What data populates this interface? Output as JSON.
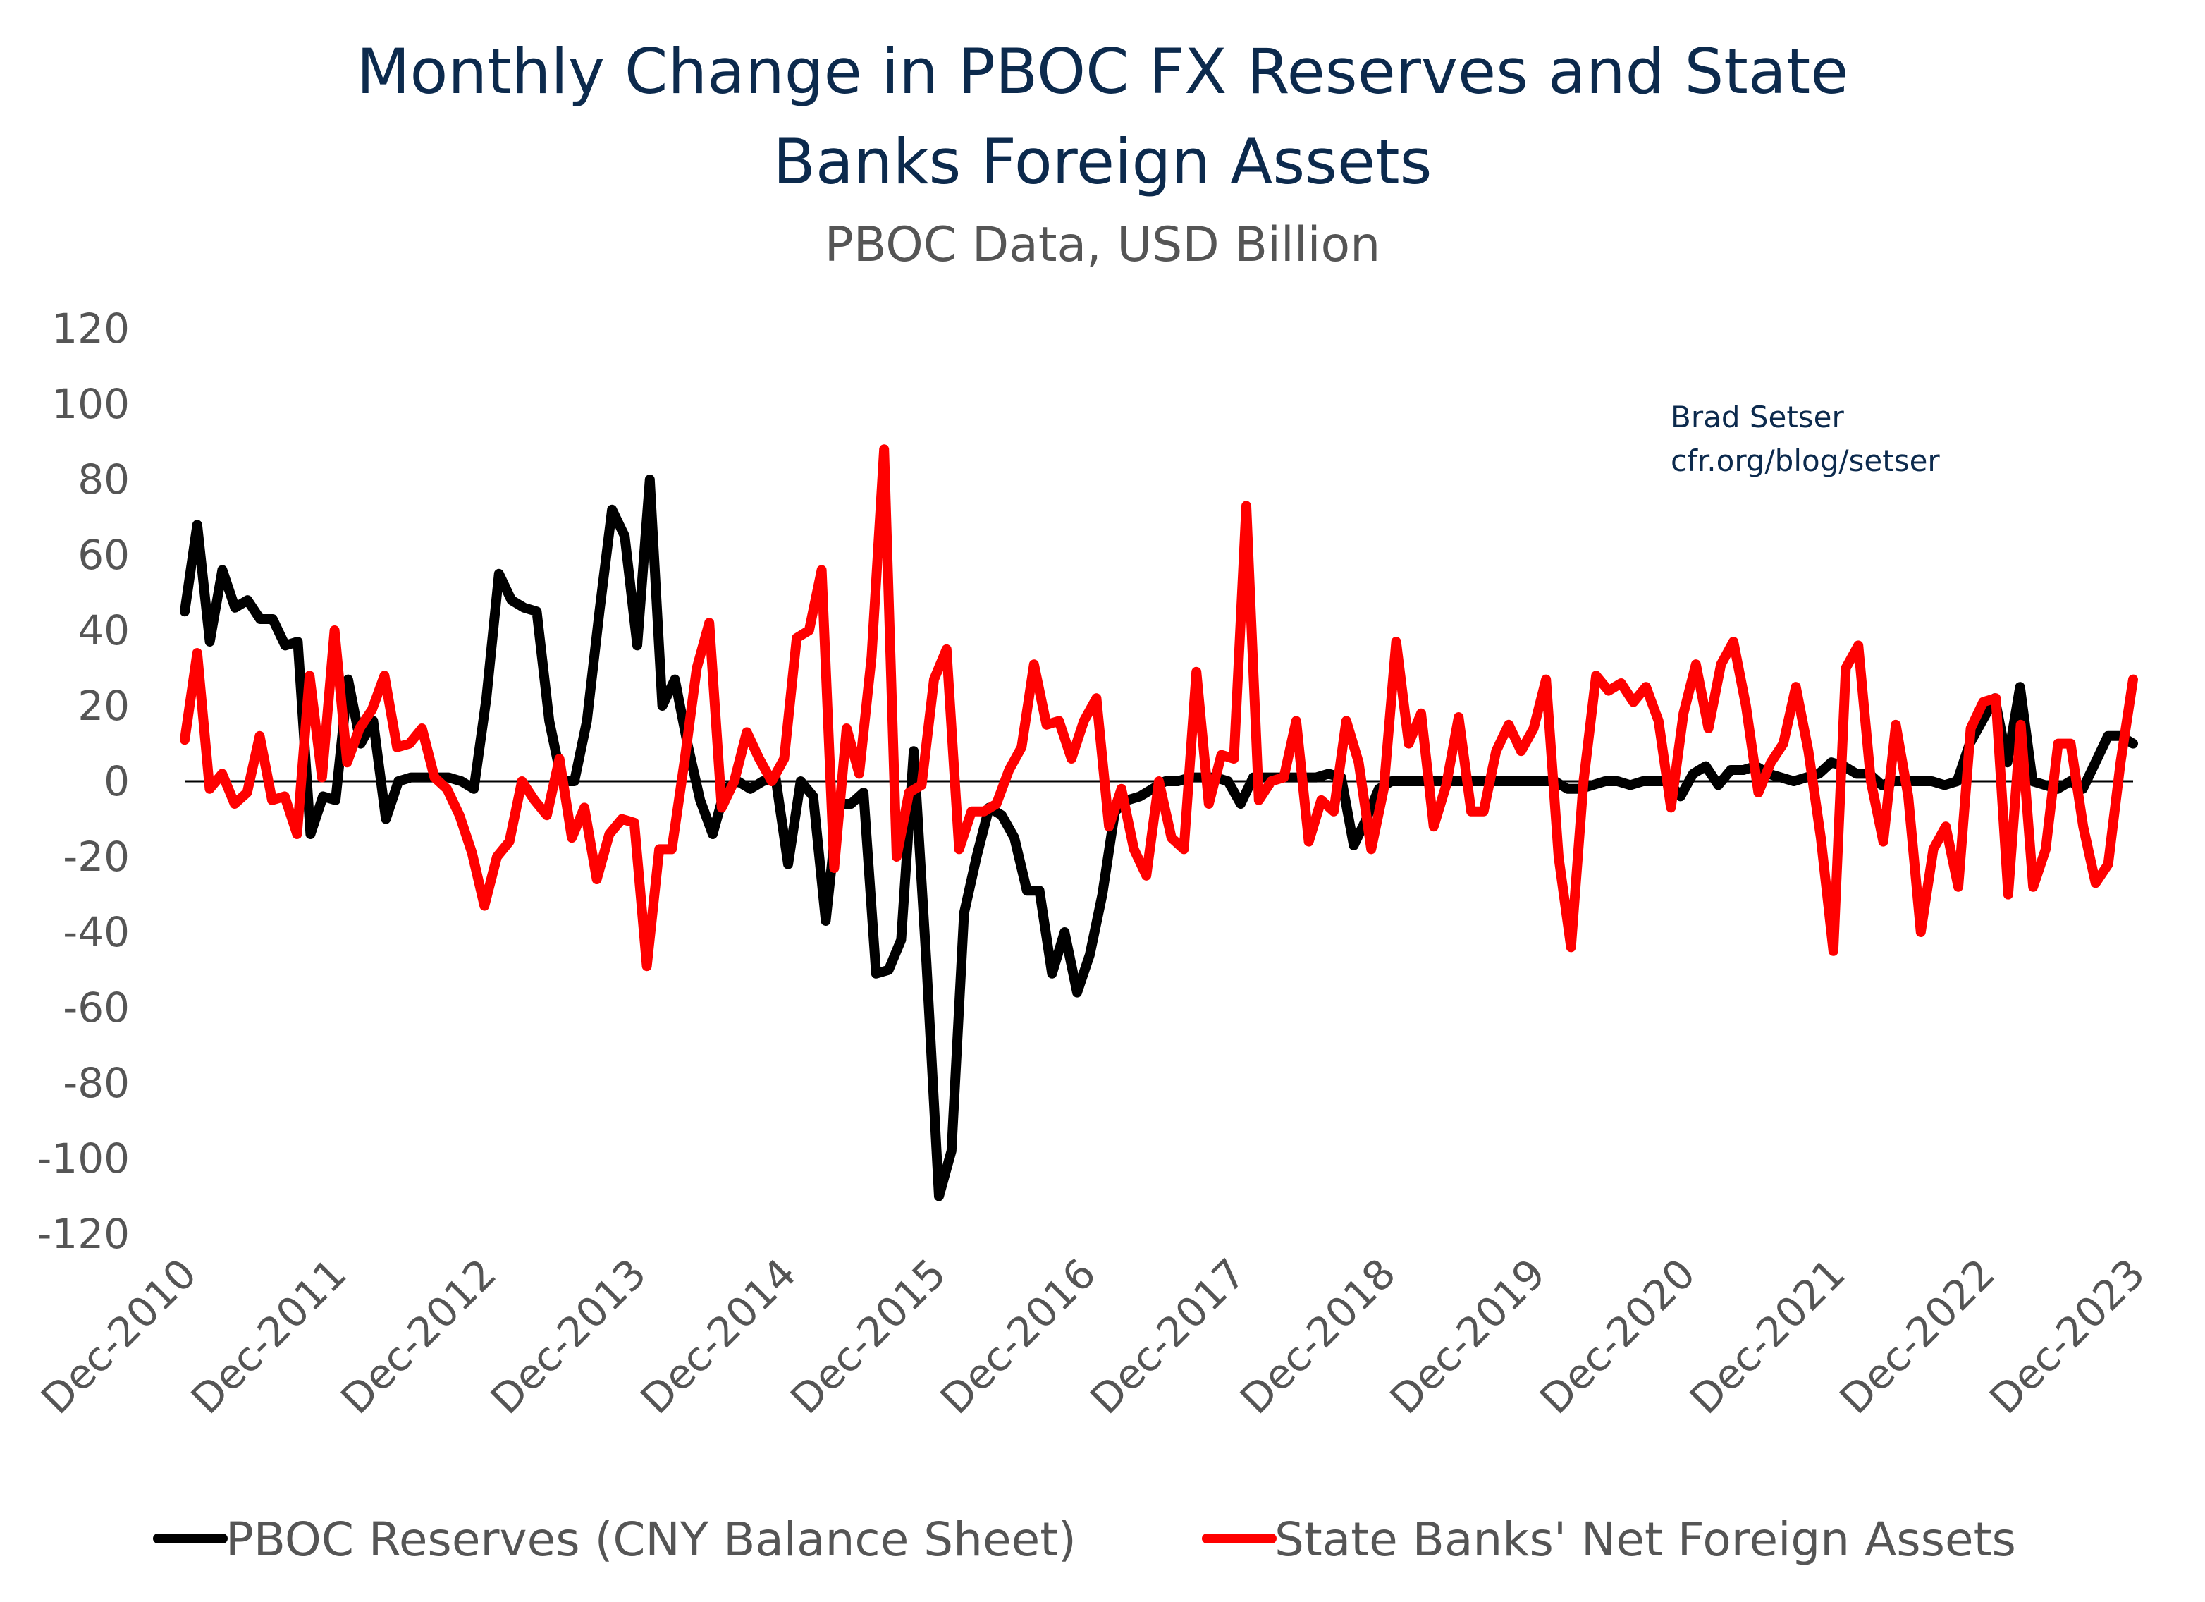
{
  "chart_data": {
    "type": "line",
    "title": "Monthly Change in PBOC FX Reserves and State Banks Foreign Assets",
    "title_lines": [
      "Monthly Change in PBOC FX Reserves and State",
      "Banks Foreign Assets"
    ],
    "subtitle": "PBOC Data, USD Billion",
    "credit": [
      "Brad Setser",
      "cfr.org/blog/setser"
    ],
    "xlabel": "",
    "ylabel": "",
    "x_start": "Dec-2010",
    "x_end": "Dec-2023",
    "x_tick_labels": [
      "Dec-2010",
      "Dec-2011",
      "Dec-2012",
      "Dec-2013",
      "Dec-2014",
      "Dec-2015",
      "Dec-2016",
      "Dec-2017",
      "Dec-2018",
      "Dec-2019",
      "Dec-2020",
      "Dec-2021",
      "Dec-2022",
      "Dec-2023"
    ],
    "ylim": [
      -120,
      120
    ],
    "y_ticks": [
      120,
      100,
      80,
      60,
      40,
      20,
      0,
      -20,
      -40,
      -60,
      -80,
      -100,
      -120
    ],
    "grid": false,
    "zero_line": true,
    "legend_position": "bottom",
    "series": [
      {
        "name": "PBOC Reserves (CNY Balance Sheet)",
        "color": "#000000",
        "values": [
          45,
          68,
          37,
          56,
          46,
          48,
          43,
          43,
          36,
          37,
          -14,
          -4,
          -5,
          27,
          10,
          16,
          -10,
          0,
          1,
          1,
          1,
          1,
          0,
          -2,
          22,
          55,
          48,
          46,
          45,
          16,
          0,
          0,
          16,
          45,
          72,
          65,
          36,
          80,
          20,
          27,
          10,
          -5,
          -14,
          -2,
          0,
          -2,
          0,
          1,
          -22,
          0,
          -4,
          -37,
          -6,
          -6,
          -3,
          -51,
          -50,
          -42,
          8,
          -48,
          -110,
          -98,
          -35,
          -20,
          -7,
          -9,
          -15,
          -29,
          -29,
          -51,
          -40,
          -56,
          -46,
          -30,
          -8,
          -5,
          -4,
          -2,
          0,
          0,
          1,
          1,
          1,
          0,
          -6,
          1,
          1,
          1,
          1,
          1,
          1,
          2,
          1,
          -17,
          -10,
          -2,
          0,
          0,
          0,
          0,
          0,
          0,
          0,
          0,
          0,
          0,
          0,
          0,
          0,
          0,
          -2,
          -2,
          -1,
          0,
          0,
          -1,
          0,
          0,
          0,
          -4,
          2,
          4,
          -1,
          3,
          3,
          4,
          2,
          1,
          0,
          1,
          2,
          5,
          4,
          2,
          2,
          -1,
          0,
          0,
          0,
          0,
          -1,
          0,
          10,
          16,
          22,
          5,
          25,
          0,
          -1,
          -2,
          0,
          -2,
          5,
          12,
          12,
          10
        ]
      },
      {
        "name": "State Banks' Net Foreign Assets",
        "color": "#ff0000",
        "values": [
          11,
          34,
          -2,
          2,
          -6,
          -3,
          12,
          -5,
          -4,
          -14,
          28,
          1,
          40,
          5,
          14,
          19,
          28,
          9,
          10,
          14,
          1,
          -2,
          -9,
          -19,
          -33,
          -20,
          -16,
          0,
          -5,
          -9,
          6,
          -15,
          -7,
          -26,
          -14,
          -10,
          -11,
          -49,
          -18,
          -18,
          5,
          30,
          42,
          -7,
          0,
          13,
          6,
          0,
          6,
          38,
          40,
          56,
          -23,
          14,
          2,
          33,
          88,
          -20,
          -3,
          -1,
          27,
          35,
          -18,
          -8,
          -8,
          -6,
          3,
          9,
          31,
          15,
          16,
          6,
          16,
          22,
          -12,
          -2,
          -18,
          -25,
          0,
          -15,
          -18,
          29,
          -6,
          7,
          6,
          73,
          -5,
          0,
          1,
          16,
          -16,
          -5,
          -8,
          16,
          5,
          -18,
          -2,
          37,
          10,
          18,
          -12,
          -1,
          17,
          -8,
          -8,
          8,
          15,
          8,
          14,
          27,
          -20,
          -44,
          0,
          28,
          24,
          26,
          21,
          25,
          16,
          -7,
          18,
          31,
          14,
          31,
          37,
          20,
          -3,
          5,
          10,
          25,
          8,
          -15,
          -45,
          30,
          36,
          0,
          -16,
          15,
          -4,
          -40,
          -18,
          -12,
          -28,
          14,
          21,
          22,
          -30,
          15,
          -28,
          -18,
          10,
          10,
          -12,
          -27,
          -22,
          5,
          27
        ]
      }
    ]
  }
}
